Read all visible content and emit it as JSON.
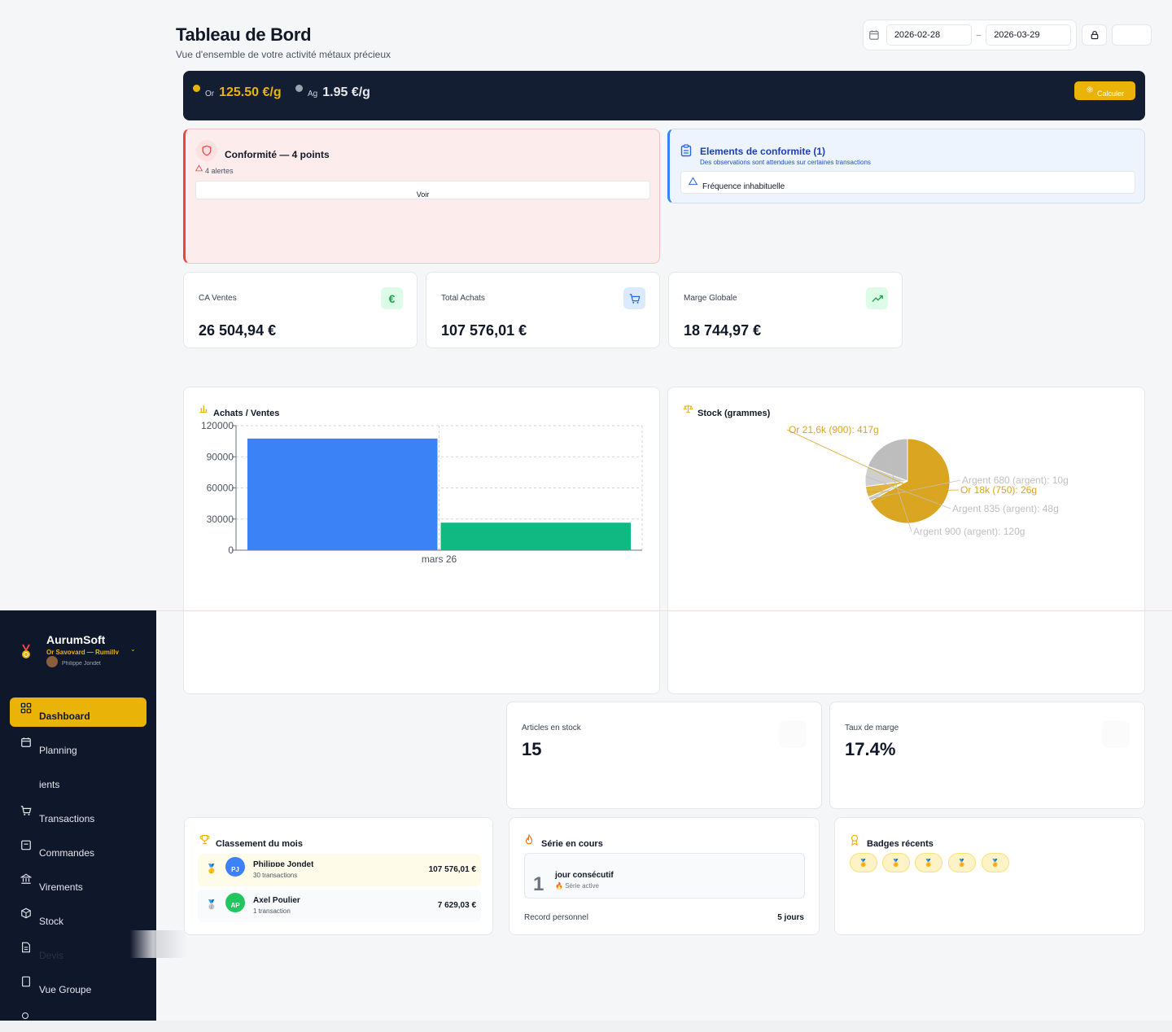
{
  "header": {
    "title": "Tableau de Bord",
    "subtitle": "Vue d'ensemble de votre activité métaux précieux"
  },
  "date_range": {
    "start": "2026-02-28",
    "separator": "–",
    "end": "2026-03-29"
  },
  "prices": {
    "gold": {
      "label": "Or",
      "value": "125.50 €/g",
      "color": "#eab308"
    },
    "silver": {
      "label": "Ag",
      "value": "1.95 €/g",
      "color": "#9ca3af"
    },
    "calc_label": "Calculer"
  },
  "compliance": {
    "title": "Conformité — 4 points",
    "alerts": "4 alertes",
    "view_label": "Voir"
  },
  "elements": {
    "title": "Elements de conformite (1)",
    "subtitle": "Des observations sont attendues sur certaines transactions",
    "row": "Fréquence inhabituelle"
  },
  "kpis": [
    {
      "label": "CA Ventes",
      "value": "26 504,94 €",
      "icon": "euro-icon"
    },
    {
      "label": "Total Achats",
      "value": "107 576,01 €",
      "icon": "cart-icon"
    },
    {
      "label": "Marge Globale",
      "value": "18 744,97 €",
      "icon": "trending-up-icon"
    }
  ],
  "bar_panel": {
    "title": "Achats / Ventes"
  },
  "pie_panel": {
    "title": "Stock (grammes)"
  },
  "chart_data": [
    {
      "type": "bar",
      "categories": [
        "mars 26"
      ],
      "series": [
        {
          "values": [
            107576.01
          ],
          "color": "#3b82f6"
        },
        {
          "values": [
            26504.94
          ],
          "color": "#10b981"
        }
      ],
      "title": "Achats / Ventes",
      "yticks": [
        "0",
        "30000",
        "60000",
        "90000",
        "120000"
      ],
      "ylim": [
        0,
        120000
      ],
      "grid": true
    },
    {
      "type": "pie",
      "title": "Stock (grammes)",
      "slices": [
        {
          "label": "Or 21,6k (900): 417g",
          "value": 417,
          "color": "#daa520"
        },
        {
          "label": "Argent 680 (argent): 10g",
          "value": 10,
          "color": "#c0c0c0"
        },
        {
          "label": "Or 18k (750): 26g",
          "value": 26,
          "color": "#daa520"
        },
        {
          "label": "Argent 835 (argent): 48g",
          "value": 48,
          "color": "#c0c0c0"
        },
        {
          "label": "Argent 900 (argent): 120g",
          "value": 120,
          "color": "#c0c0c0"
        }
      ]
    }
  ],
  "sidebar": {
    "brand": "AurumSoft",
    "org": "Or Savoyard — Rumilly",
    "user": "Philippe Jondet",
    "items": [
      {
        "label": "Dashboard",
        "icon": "dashboard-icon",
        "active": true
      },
      {
        "label": "Planning",
        "icon": "calendar-icon"
      },
      {
        "label": "ients",
        "icon": ""
      },
      {
        "label": "Transactions",
        "icon": "cart-icon"
      },
      {
        "label": "Commandes",
        "icon": "clipboard-icon"
      },
      {
        "label": "Virements",
        "icon": "bank-icon"
      },
      {
        "label": "Stock",
        "icon": "box-icon"
      },
      {
        "label": "Devis",
        "icon": "document-icon"
      },
      {
        "label": "Vue Groupe",
        "icon": "building-icon"
      }
    ]
  },
  "mini_kpis": [
    {
      "label": "Articles en stock",
      "value": "15"
    },
    {
      "label": "Taux de marge",
      "value": "17.4%"
    }
  ],
  "ranking": {
    "title": "Classement du mois",
    "rows": [
      {
        "initials": "PJ",
        "name": "Philippe Jondet",
        "count": "30 transactions",
        "amount": "107 576,01 €",
        "color": "#3b82f6"
      },
      {
        "initials": "AP",
        "name": "Axel Poulier",
        "count": "1 transaction",
        "amount": "7 629,03 €",
        "color": "#22c55e"
      }
    ]
  },
  "streak": {
    "title": "Série en cours",
    "number": "1",
    "label": "jour consécutif",
    "status": "🔥 Série active",
    "record_label": "Record personnel",
    "record_value": "5 jours"
  },
  "badges": {
    "title": "Badges récents",
    "count": 5
  }
}
